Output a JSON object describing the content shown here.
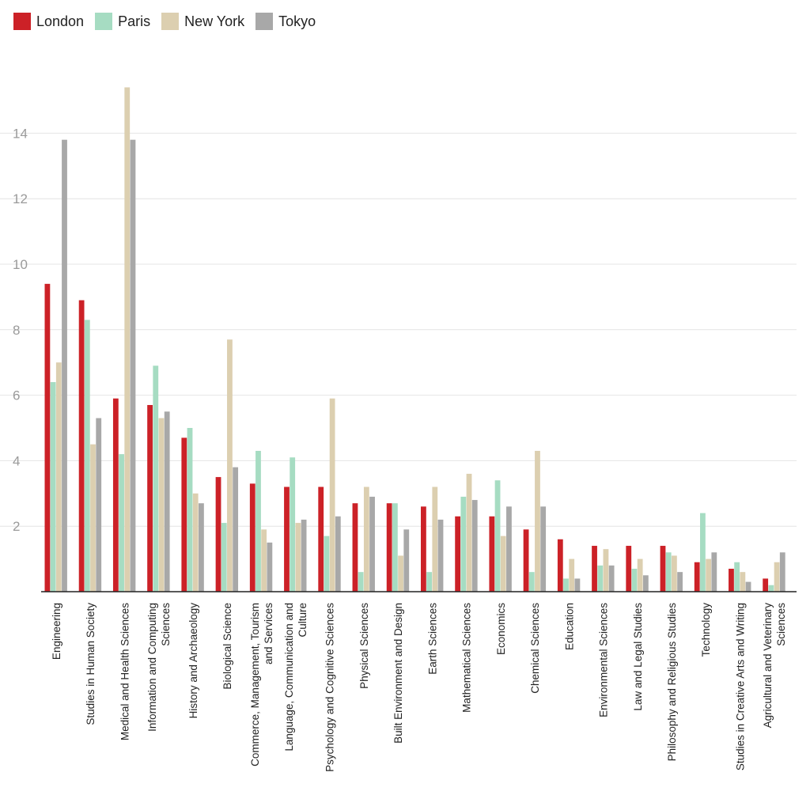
{
  "chart_data": {
    "type": "bar",
    "categories": [
      [
        "Engineering"
      ],
      [
        "Studies in Human Society"
      ],
      [
        "Medical and Health Sciences"
      ],
      [
        "Information and Computing",
        "Sciences"
      ],
      [
        "History and Archaeology"
      ],
      [
        "Biological Science"
      ],
      [
        "Commerce, Management, Tourism",
        "and Services"
      ],
      [
        "Language, Communication and",
        "Culture"
      ],
      [
        "Psychology and Cognitive Sciences"
      ],
      [
        "Physical Sciences"
      ],
      [
        "Built Environment and Design"
      ],
      [
        "Earth Sciences"
      ],
      [
        "Mathematical Sciences"
      ],
      [
        "Economics"
      ],
      [
        "Chemical Sciences"
      ],
      [
        "Education"
      ],
      [
        "Environmental Sciences"
      ],
      [
        "Law and Legal Studies"
      ],
      [
        "Philosophy and Religious Studies"
      ],
      [
        "Technology"
      ],
      [
        "Studies in Creative Arts and Writing"
      ],
      [
        "Agricultural and Veterinary",
        "Sciences"
      ]
    ],
    "series": [
      {
        "name": "London",
        "color": "#cc2127",
        "values": [
          9.4,
          8.9,
          5.9,
          5.7,
          4.7,
          3.5,
          3.3,
          3.2,
          3.2,
          2.7,
          2.7,
          2.6,
          2.3,
          2.3,
          1.9,
          1.6,
          1.4,
          1.4,
          1.4,
          0.9,
          0.7,
          0.4
        ]
      },
      {
        "name": "Paris",
        "color": "#a6dcc2",
        "values": [
          6.4,
          8.3,
          4.2,
          6.9,
          5.0,
          2.1,
          4.3,
          4.1,
          1.7,
          0.6,
          2.7,
          0.6,
          2.9,
          3.4,
          0.6,
          0.4,
          0.8,
          0.7,
          1.2,
          2.4,
          0.9,
          0.2
        ]
      },
      {
        "name": "New York",
        "color": "#dccfb0",
        "values": [
          7.0,
          4.5,
          15.4,
          5.3,
          3.0,
          7.7,
          1.9,
          2.1,
          5.9,
          3.2,
          1.1,
          3.2,
          3.6,
          1.7,
          4.3,
          1.0,
          1.3,
          1.0,
          1.1,
          1.0,
          0.6,
          0.9
        ]
      },
      {
        "name": "Tokyo",
        "color": "#a8a8a8",
        "values": [
          13.8,
          5.3,
          13.8,
          5.5,
          2.7,
          3.8,
          1.5,
          2.2,
          2.3,
          2.9,
          1.9,
          2.2,
          2.8,
          2.6,
          2.6,
          0.4,
          0.8,
          0.5,
          0.6,
          1.2,
          0.3,
          1.2
        ]
      }
    ],
    "y_ticks": [
      "2",
      "4",
      "6",
      "8",
      "10",
      "12",
      "14"
    ],
    "ylim": [
      0,
      15.4
    ],
    "grid": true,
    "legend_position": "top-left"
  }
}
